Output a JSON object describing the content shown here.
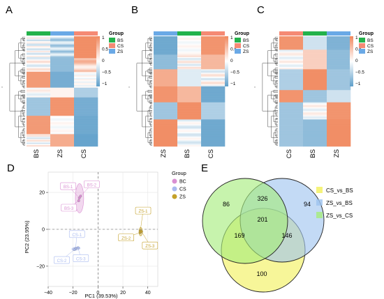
{
  "panel_letters": [
    "A",
    "B",
    "C",
    "D",
    "E"
  ],
  "heatmap_legend": {
    "group_title": "Group",
    "scale_ticks": [
      "1",
      "0.5",
      "0",
      "−0.5",
      "−1"
    ],
    "groups": [
      {
        "label": "BS",
        "color": "#23b24b"
      },
      {
        "label": "CS",
        "color": "#f58a74"
      },
      {
        "label": "ZS",
        "color": "#6aa9e6"
      }
    ]
  },
  "heatmaps": [
    {
      "panel": "A",
      "columns": [
        "BS",
        "ZS",
        "CS"
      ]
    },
    {
      "panel": "B",
      "columns": [
        "ZS",
        "BS",
        "CS"
      ]
    },
    {
      "panel": "C",
      "columns": [
        "CS",
        "BS",
        "ZS"
      ]
    }
  ],
  "colors": {
    "high": "#f0885e",
    "mid": "#ffffff",
    "low": "#5f9fca",
    "bc": "#d98fd2",
    "cs": "#a9baf0",
    "zs": "#c4a12a"
  },
  "chart_data": [
    {
      "type": "scatter",
      "panel": "D",
      "xlabel": "PC1 (39.53%)",
      "ylabel": "PC2 (23.95%)",
      "xlim": [
        -40,
        48
      ],
      "ylim": [
        -31,
        31
      ],
      "xticks": [
        -40,
        -20,
        0,
        20,
        40
      ],
      "yticks": [
        -20,
        0,
        20
      ],
      "xtick_labels": [
        "−40",
        "−20",
        "0",
        "20",
        "40"
      ],
      "ytick_labels": [
        "−20",
        "0",
        "20"
      ],
      "legend_title": "Group",
      "legend_position": "right",
      "grid": true,
      "series": [
        {
          "name": "BC",
          "points": [
            {
              "label": "BS-1",
              "x": -15,
              "y": 17
            },
            {
              "label": "BS-2",
              "x": -14,
              "y": 18
            },
            {
              "label": "BS-3",
              "x": -15.5,
              "y": 15.5
            }
          ]
        },
        {
          "name": "CS",
          "points": [
            {
              "label": "CS-1",
              "x": -18,
              "y": -10.5
            },
            {
              "label": "CS-2",
              "x": -19,
              "y": -11
            },
            {
              "label": "CS-3",
              "x": -16,
              "y": -10
            }
          ]
        },
        {
          "name": "ZS",
          "points": [
            {
              "label": "ZS-1",
              "x": 34,
              "y": -0.8
            },
            {
              "label": "ZS-2",
              "x": 33.8,
              "y": -1.8
            },
            {
              "label": "ZS-3",
              "x": 35,
              "y": -1.2
            }
          ]
        }
      ]
    },
    {
      "type": "venn",
      "panel": "E",
      "sets": [
        {
          "name": "CS_vs_BS",
          "color": "#f2f05a"
        },
        {
          "name": "ZS_vs_BS",
          "color": "#9ec3ef"
        },
        {
          "name": "ZS_vs_CS",
          "color": "#a5ec7a"
        }
      ],
      "regions": [
        {
          "sets": [
            "ZS_vs_CS"
          ],
          "value": 86
        },
        {
          "sets": [
            "ZS_vs_BS"
          ],
          "value": 94
        },
        {
          "sets": [
            "CS_vs_BS"
          ],
          "value": 100
        },
        {
          "sets": [
            "ZS_vs_CS",
            "ZS_vs_BS"
          ],
          "value": 326
        },
        {
          "sets": [
            "ZS_vs_CS",
            "CS_vs_BS"
          ],
          "value": 169
        },
        {
          "sets": [
            "ZS_vs_BS",
            "CS_vs_BS"
          ],
          "value": 146
        },
        {
          "sets": [
            "ZS_vs_CS",
            "ZS_vs_BS",
            "CS_vs_BS"
          ],
          "value": 201
        }
      ]
    }
  ]
}
